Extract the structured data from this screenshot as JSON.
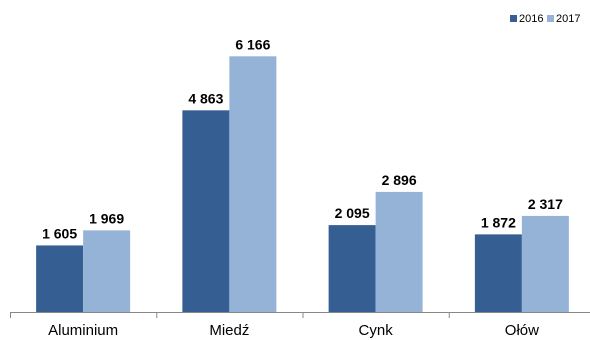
{
  "chart_data": {
    "type": "bar",
    "categories": [
      "Aluminium",
      "Miedź",
      "Cynk",
      "Ołów"
    ],
    "series": [
      {
        "name": "2016",
        "values": [
          1605,
          4863,
          2095,
          1872
        ],
        "labels": [
          "1 605",
          "4 863",
          "2 095",
          "1 872"
        ],
        "color": "#355e92"
      },
      {
        "name": "2017",
        "values": [
          1969,
          6166,
          2896,
          2317
        ],
        "labels": [
          "1 969",
          "6 166",
          "2 896",
          "2 317"
        ],
        "color": "#95b3d7"
      }
    ],
    "title": "",
    "xlabel": "",
    "ylabel": "",
    "ylim": [
      0,
      6800
    ],
    "grid": false,
    "legend_position": "top-right"
  }
}
